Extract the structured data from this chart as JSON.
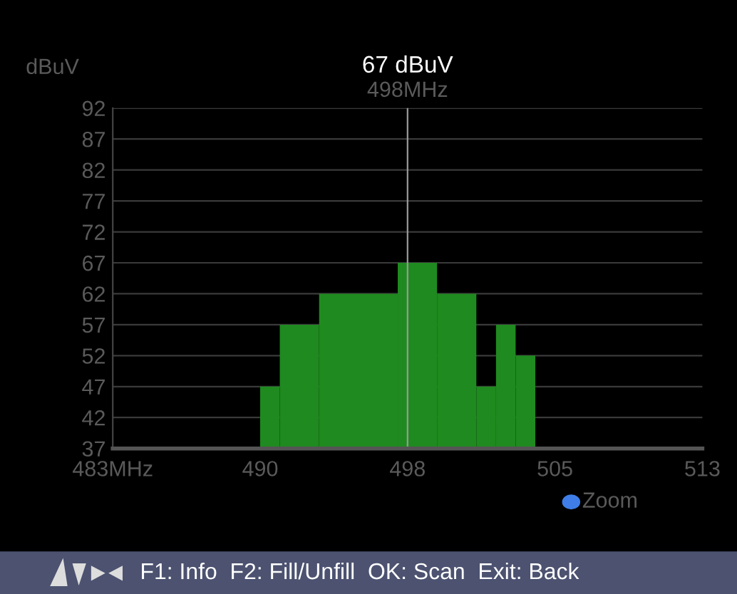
{
  "chart_data": {
    "type": "histogram",
    "title": "67 dBuV",
    "ylabel": "dBuV",
    "bins": [
      490.5,
      491.5,
      493.5,
      497.5,
      499.5,
      501.5,
      502.5,
      503.5,
      504.5
    ],
    "values": [
      47,
      57,
      62,
      67,
      62,
      47,
      57,
      52
    ],
    "color": "#1f8a1f",
    "xlim": [
      483,
      513
    ],
    "xticks": [
      {
        "value": 483,
        "label": "483MHz"
      },
      {
        "value": 490.5,
        "label": "490"
      },
      {
        "value": 498,
        "label": "498"
      },
      {
        "value": 505.5,
        "label": "505"
      },
      {
        "value": 513,
        "label": "513"
      }
    ],
    "ylim": [
      37,
      92
    ],
    "yticks": [
      37,
      42,
      47,
      52,
      57,
      62,
      67,
      72,
      77,
      82,
      87,
      92
    ],
    "grid": "y",
    "ref_lines": [
      {
        "axis": "x",
        "value": 498,
        "label": "498MHz",
        "color": "#9a9a9a"
      }
    ],
    "annotations": [
      "Zoom",
      "F1: Info  F2: Fill/Unfill  OK: Scan  Exit: Back"
    ]
  }
}
